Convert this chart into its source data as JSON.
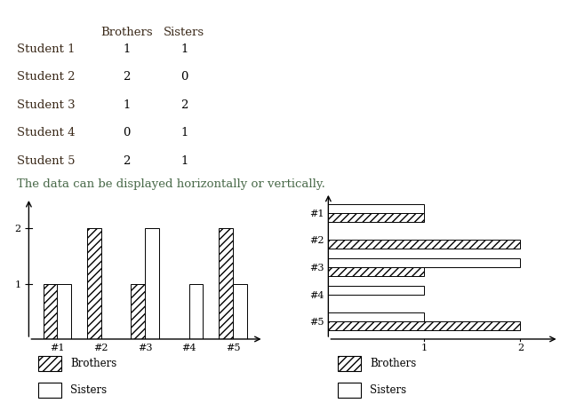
{
  "students": [
    "#1",
    "#2",
    "#3",
    "#4",
    "#5"
  ],
  "brothers": [
    1,
    2,
    1,
    0,
    2
  ],
  "sisters": [
    1,
    0,
    2,
    1,
    1
  ],
  "table_students": [
    "Student 1",
    "Student 2",
    "Student 3",
    "Student 4",
    "Student 5"
  ],
  "table_brothers": [
    1,
    2,
    1,
    0,
    2
  ],
  "table_sisters": [
    1,
    0,
    2,
    1,
    1
  ],
  "bg_color": "#ffffff",
  "text_color_table": "#3b2a1a",
  "text_color_subtitle": "#4a6a4a",
  "text_color_body": "#000000",
  "bar_edge_color": "#000000",
  "title_text": "The data can be displayed horizontally or vertically.",
  "header_brothers": "Brothers",
  "header_sisters": "Sisters"
}
